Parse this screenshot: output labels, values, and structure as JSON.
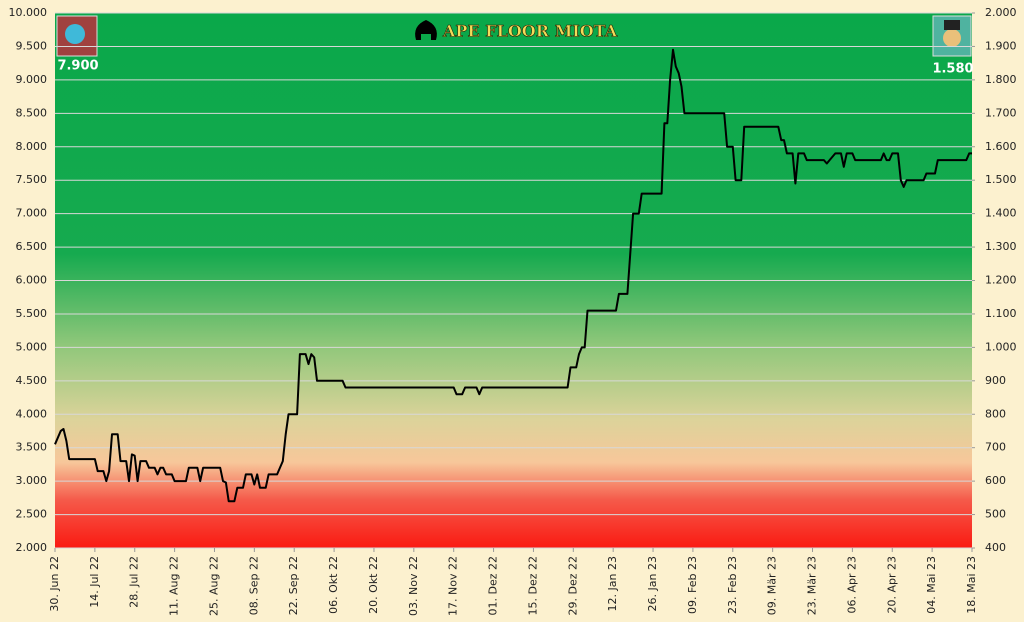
{
  "chart_data": {
    "type": "line",
    "title": "APE FLOOR MIOTA",
    "annotations": [
      "7.900",
      "1.580"
    ],
    "color": "#000000",
    "grid": true,
    "x": [
      "2022-06-30",
      "2022-07-02",
      "2022-07-03",
      "2022-07-04",
      "2022-07-05",
      "2022-07-14",
      "2022-07-15",
      "2022-07-17",
      "2022-07-18",
      "2022-07-19",
      "2022-07-20",
      "2022-07-22",
      "2022-07-23",
      "2022-07-25",
      "2022-07-26",
      "2022-07-27",
      "2022-07-28",
      "2022-07-29",
      "2022-07-30",
      "2022-08-01",
      "2022-08-02",
      "2022-08-04",
      "2022-08-05",
      "2022-08-06",
      "2022-08-07",
      "2022-08-08",
      "2022-08-10",
      "2022-08-11",
      "2022-08-15",
      "2022-08-16",
      "2022-08-19",
      "2022-08-20",
      "2022-08-21",
      "2022-08-27",
      "2022-08-28",
      "2022-08-29",
      "2022-08-30",
      "2022-09-01",
      "2022-09-02",
      "2022-09-04",
      "2022-09-05",
      "2022-09-07",
      "2022-09-08",
      "2022-09-09",
      "2022-09-10",
      "2022-09-12",
      "2022-09-13",
      "2022-09-16",
      "2022-09-18",
      "2022-09-19",
      "2022-09-20",
      "2022-09-23",
      "2022-09-24",
      "2022-09-26",
      "2022-09-27",
      "2022-09-28",
      "2022-09-29",
      "2022-09-30",
      "2022-10-09",
      "2022-10-10",
      "2022-11-17",
      "2022-11-18",
      "2022-11-20",
      "2022-11-21",
      "2022-11-25",
      "2022-11-26",
      "2022-11-27",
      "2022-12-27",
      "2022-12-28",
      "2022-12-30",
      "2022-12-31",
      "2023-01-01",
      "2023-01-02",
      "2023-01-03",
      "2023-01-13",
      "2023-01-14",
      "2023-01-17",
      "2023-01-19",
      "2023-01-21",
      "2023-01-22",
      "2023-01-29",
      "2023-01-30",
      "2023-01-31",
      "2023-02-01",
      "2023-02-02",
      "2023-02-03",
      "2023-02-04",
      "2023-02-05",
      "2023-02-06",
      "2023-02-20",
      "2023-02-21",
      "2023-02-23",
      "2023-02-24",
      "2023-02-26",
      "2023-02-27",
      "2023-03-11",
      "2023-03-12",
      "2023-03-13",
      "2023-03-14",
      "2023-03-16",
      "2023-03-17",
      "2023-03-18",
      "2023-03-20",
      "2023-03-21",
      "2023-03-27",
      "2023-03-28",
      "2023-03-29",
      "2023-03-31",
      "2023-04-02",
      "2023-04-03",
      "2023-04-04",
      "2023-04-06",
      "2023-04-07",
      "2023-04-16",
      "2023-04-17",
      "2023-04-18",
      "2023-04-19",
      "2023-04-20",
      "2023-04-22",
      "2023-04-23",
      "2023-04-24",
      "2023-04-25",
      "2023-05-01",
      "2023-05-02",
      "2023-05-05",
      "2023-05-06",
      "2023-05-16",
      "2023-05-17",
      "2023-05-18"
    ],
    "values": [
      3550,
      3750,
      3780,
      3600,
      3330,
      3330,
      3150,
      3150,
      3000,
      3150,
      3700,
      3700,
      3300,
      3300,
      3000,
      3400,
      3380,
      3000,
      3300,
      3300,
      3200,
      3200,
      3100,
      3200,
      3200,
      3100,
      3100,
      3000,
      3000,
      3200,
      3200,
      3000,
      3200,
      3200,
      3000,
      2980,
      2700,
      2700,
      2900,
      2900,
      3100,
      3100,
      2950,
      3100,
      2900,
      2900,
      3100,
      3100,
      3300,
      3700,
      4000,
      4000,
      4900,
      4900,
      4750,
      4900,
      4850,
      4500,
      4500,
      4400,
      4400,
      4300,
      4300,
      4400,
      4400,
      4300,
      4400,
      4400,
      4700,
      4700,
      4900,
      5000,
      5000,
      5550,
      5550,
      5800,
      5800,
      7000,
      7000,
      7300,
      7300,
      8350,
      8350,
      9000,
      9450,
      9200,
      9100,
      8900,
      8500,
      8500,
      8000,
      8000,
      7500,
      7500,
      8300,
      8300,
      8100,
      8100,
      7900,
      7900,
      7450,
      7900,
      7900,
      7800,
      7800,
      7750,
      7800,
      7900,
      7900,
      7700,
      7900,
      7900,
      7800,
      7800,
      7900,
      7800,
      7800,
      7900,
      7900,
      7500,
      7400,
      7500,
      7500,
      7600,
      7600,
      7800,
      7800,
      7900,
      7900
    ],
    "xlim": [
      "2022-06-30",
      "2023-05-18"
    ],
    "xticks": [
      {
        "value": "2022-06-30",
        "label": "30. Jun 22"
      },
      {
        "value": "2022-07-14",
        "label": "14. Jul 22"
      },
      {
        "value": "2022-07-28",
        "label": "28. Jul 22"
      },
      {
        "value": "2022-08-11",
        "label": "11. Aug 22"
      },
      {
        "value": "2022-08-25",
        "label": "25. Aug 22"
      },
      {
        "value": "2022-09-08",
        "label": "08. Sep 22"
      },
      {
        "value": "2022-09-22",
        "label": "22. Sep 22"
      },
      {
        "value": "2022-10-06",
        "label": "06. Okt 22"
      },
      {
        "value": "2022-10-20",
        "label": "20. Okt 22"
      },
      {
        "value": "2022-11-03",
        "label": "03. Nov 22"
      },
      {
        "value": "2022-11-17",
        "label": "17. Nov 22"
      },
      {
        "value": "2022-12-01",
        "label": "01. Dez 22"
      },
      {
        "value": "2022-12-15",
        "label": "15. Dez 22"
      },
      {
        "value": "2022-12-29",
        "label": "29. Dez 22"
      },
      {
        "value": "2023-01-12",
        "label": "12. Jan 23"
      },
      {
        "value": "2023-01-26",
        "label": "26. Jan 23"
      },
      {
        "value": "2023-02-09",
        "label": "09. Feb 23"
      },
      {
        "value": "2023-02-23",
        "label": "23. Feb 23"
      },
      {
        "value": "2023-03-09",
        "label": "09. Mär 23"
      },
      {
        "value": "2023-03-23",
        "label": "23. Mär 23"
      },
      {
        "value": "2023-04-06",
        "label": "06. Apr 23"
      },
      {
        "value": "2023-04-20",
        "label": "20. Apr 23"
      },
      {
        "value": "2023-05-04",
        "label": "04. Mai 23"
      },
      {
        "value": "2023-05-18",
        "label": "18. Mai 23"
      }
    ],
    "ylim": [
      2000,
      10000
    ],
    "yticks": [
      {
        "value": 2000,
        "label": "2.000"
      },
      {
        "value": 2500,
        "label": "2.500"
      },
      {
        "value": 3000,
        "label": "3.000"
      },
      {
        "value": 3500,
        "label": "3.500"
      },
      {
        "value": 4000,
        "label": "4.000"
      },
      {
        "value": 4500,
        "label": "4.500"
      },
      {
        "value": 5000,
        "label": "5.000"
      },
      {
        "value": 5500,
        "label": "5.500"
      },
      {
        "value": 6000,
        "label": "6.000"
      },
      {
        "value": 6500,
        "label": "6.500"
      },
      {
        "value": 7000,
        "label": "7.000"
      },
      {
        "value": 7500,
        "label": "7.500"
      },
      {
        "value": 8000,
        "label": "8.000"
      },
      {
        "value": 8500,
        "label": "8.500"
      },
      {
        "value": 9000,
        "label": "9.000"
      },
      {
        "value": 9500,
        "label": "9.500"
      },
      {
        "value": 10000,
        "label": "10.000"
      }
    ],
    "y2lim": [
      400,
      2000
    ],
    "y2ticks": [
      400,
      500,
      600,
      700,
      800,
      900,
      {
        "value": 1000,
        "label": "1.000"
      },
      {
        "value": 1100,
        "label": "1.100"
      },
      {
        "value": 1200,
        "label": "1.200"
      },
      {
        "value": 1300,
        "label": "1.300"
      },
      {
        "value": 1400,
        "label": "1.400"
      },
      {
        "value": 1500,
        "label": "1.500"
      },
      {
        "value": 1600,
        "label": "1.600"
      },
      {
        "value": 1700,
        "label": "1.700"
      },
      {
        "value": 1800,
        "label": "1.800"
      },
      {
        "value": 1900,
        "label": "1.900"
      },
      {
        "value": 2000,
        "label": "2.000"
      }
    ]
  }
}
